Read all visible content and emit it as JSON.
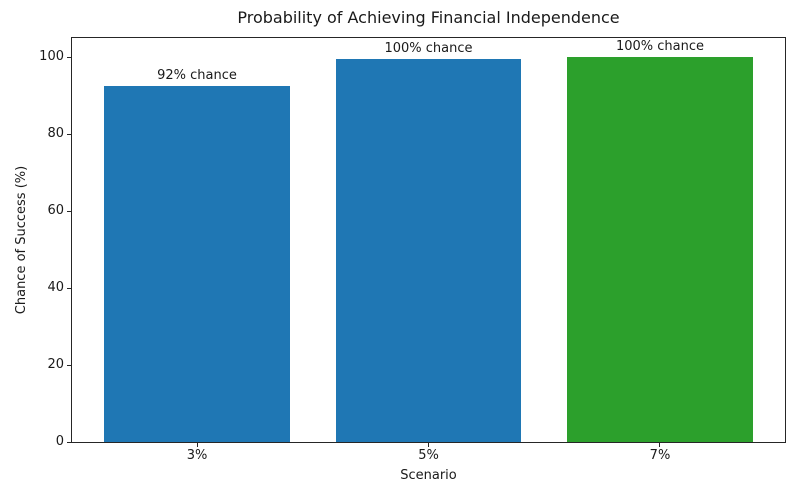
{
  "chart_data": {
    "type": "bar",
    "title": "Probability of Achieving Financial Independence",
    "xlabel": "Scenario",
    "ylabel": "Chance of Success (%)",
    "categories": [
      "3%",
      "5%",
      "7%"
    ],
    "values": [
      92.4,
      99.5,
      100
    ],
    "bar_labels": [
      "92% chance",
      "100% chance",
      "100% chance"
    ],
    "bar_colors": [
      "#1f77b4",
      "#1f77b4",
      "#2ca02c"
    ],
    "yticks": [
      0,
      20,
      40,
      60,
      80,
      100
    ],
    "ylim": [
      0,
      105
    ],
    "xlim": [
      -0.54,
      2.54
    ],
    "bar_width": 0.8,
    "grid": false,
    "legend": null
  }
}
